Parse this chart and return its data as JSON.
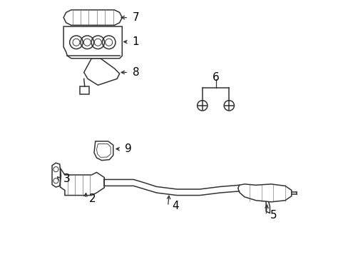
{
  "bg_color": "#ffffff",
  "line_color": "#333333",
  "label_color": "#000000",
  "fig_width": 4.89,
  "fig_height": 3.6,
  "dpi": 100,
  "font_size": 11
}
